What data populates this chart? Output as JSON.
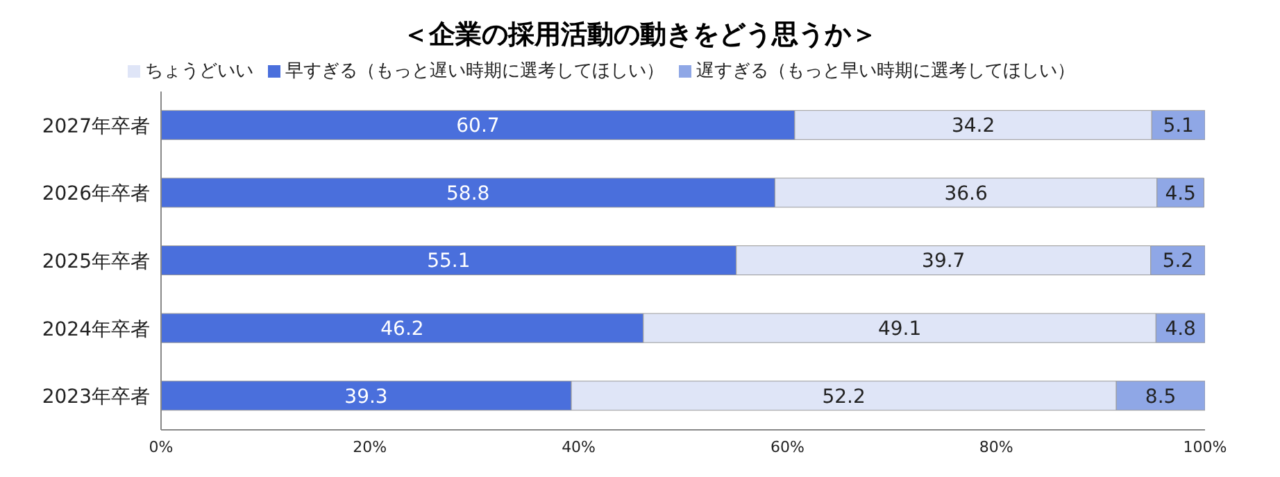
{
  "chart_data": {
    "type": "bar",
    "orientation": "horizontal",
    "stacked": true,
    "title": "＜企業の採用活動の動きをどう思うか＞",
    "categories": [
      "2027年卒者",
      "2026年卒者",
      "2025年卒者",
      "2024年卒者",
      "2023年卒者"
    ],
    "series": [
      {
        "name": "早すぎる（もっと遅い時期に選考してほしい）",
        "color": "#4a6fdc",
        "values": [
          60.7,
          58.8,
          55.1,
          46.2,
          39.3
        ]
      },
      {
        "name": "ちょうどいい",
        "color": "#dfe5f7",
        "values": [
          34.2,
          36.6,
          39.7,
          49.1,
          52.2
        ]
      },
      {
        "name": "遅すぎる（もっと早い時期に選考してほしい）",
        "color": "#8fa7e6",
        "values": [
          5.1,
          4.5,
          5.2,
          4.8,
          8.5
        ]
      }
    ],
    "xlim": [
      0,
      100
    ],
    "xticks": [
      {
        "value": 0,
        "label": "0%"
      },
      {
        "value": 20,
        "label": "20%"
      },
      {
        "value": 40,
        "label": "40%"
      },
      {
        "value": 60,
        "label": "60%"
      },
      {
        "value": 80,
        "label": "80%"
      },
      {
        "value": 100,
        "label": "100%"
      }
    ],
    "data_labels": true,
    "legend": "top",
    "grid": false
  }
}
